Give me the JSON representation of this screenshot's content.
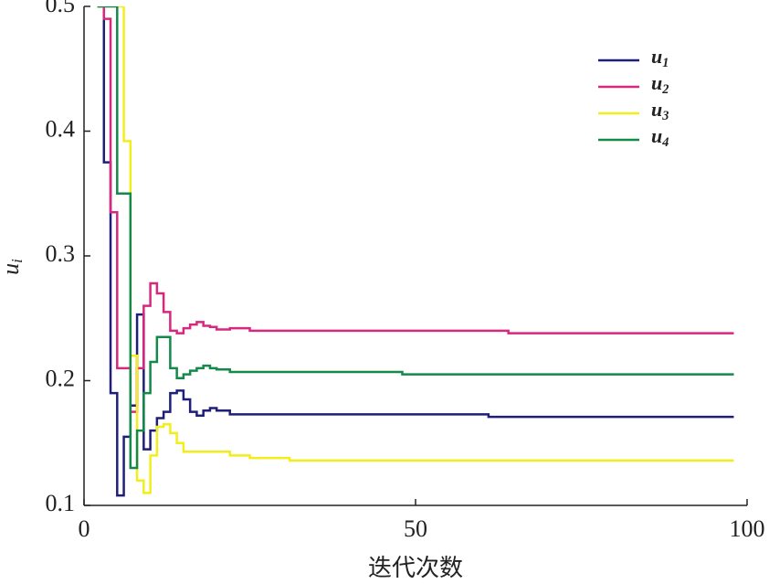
{
  "chart_data": {
    "type": "line",
    "step": true,
    "x_label": "迭代次数",
    "y_label": "ui",
    "x": [
      2,
      3,
      4,
      5,
      6,
      7,
      8,
      9,
      10,
      11,
      12,
      13,
      14,
      15,
      16,
      17,
      18,
      19,
      20,
      22,
      25,
      31,
      48,
      61,
      64,
      98
    ],
    "series": [
      {
        "name": "u1",
        "color": "#1f1f7a",
        "values": [
          0.5,
          0.375,
          0.19,
          0.108,
          0.155,
          0.18,
          0.253,
          0.145,
          0.16,
          0.17,
          0.175,
          0.19,
          0.192,
          0.185,
          0.175,
          0.172,
          0.176,
          0.178,
          0.176,
          0.173,
          0.173,
          0.173,
          0.173,
          0.171,
          0.171,
          0.171
        ]
      },
      {
        "name": "u2",
        "color": "#d6287f",
        "values": [
          0.5,
          0.49,
          0.335,
          0.21,
          0.21,
          0.175,
          0.21,
          0.26,
          0.278,
          0.27,
          0.255,
          0.24,
          0.238,
          0.242,
          0.245,
          0.247,
          0.244,
          0.243,
          0.241,
          0.242,
          0.24,
          0.24,
          0.24,
          0.24,
          0.238,
          0.238
        ]
      },
      {
        "name": "u3",
        "color": "#f2ee1a",
        "values": [
          0.5,
          0.5,
          0.5,
          0.5,
          0.392,
          0.22,
          0.12,
          0.11,
          0.14,
          0.163,
          0.165,
          0.158,
          0.15,
          0.143,
          0.143,
          0.143,
          0.143,
          0.143,
          0.143,
          0.14,
          0.138,
          0.136,
          0.136,
          0.136,
          0.136,
          0.136
        ]
      },
      {
        "name": "u4",
        "color": "#13894a",
        "values": [
          0.5,
          0.5,
          0.5,
          0.35,
          0.35,
          0.13,
          0.16,
          0.19,
          0.215,
          0.235,
          0.235,
          0.21,
          0.202,
          0.205,
          0.208,
          0.21,
          0.212,
          0.21,
          0.209,
          0.207,
          0.207,
          0.207,
          0.205,
          0.205,
          0.205,
          0.205
        ]
      }
    ],
    "xlim": [
      0,
      100
    ],
    "xticks": [
      0,
      50,
      100
    ],
    "ylim": [
      0.1,
      0.5
    ],
    "yticks": [
      0.1,
      0.2,
      0.3,
      0.4,
      0.5
    ],
    "legend": "upper right"
  }
}
